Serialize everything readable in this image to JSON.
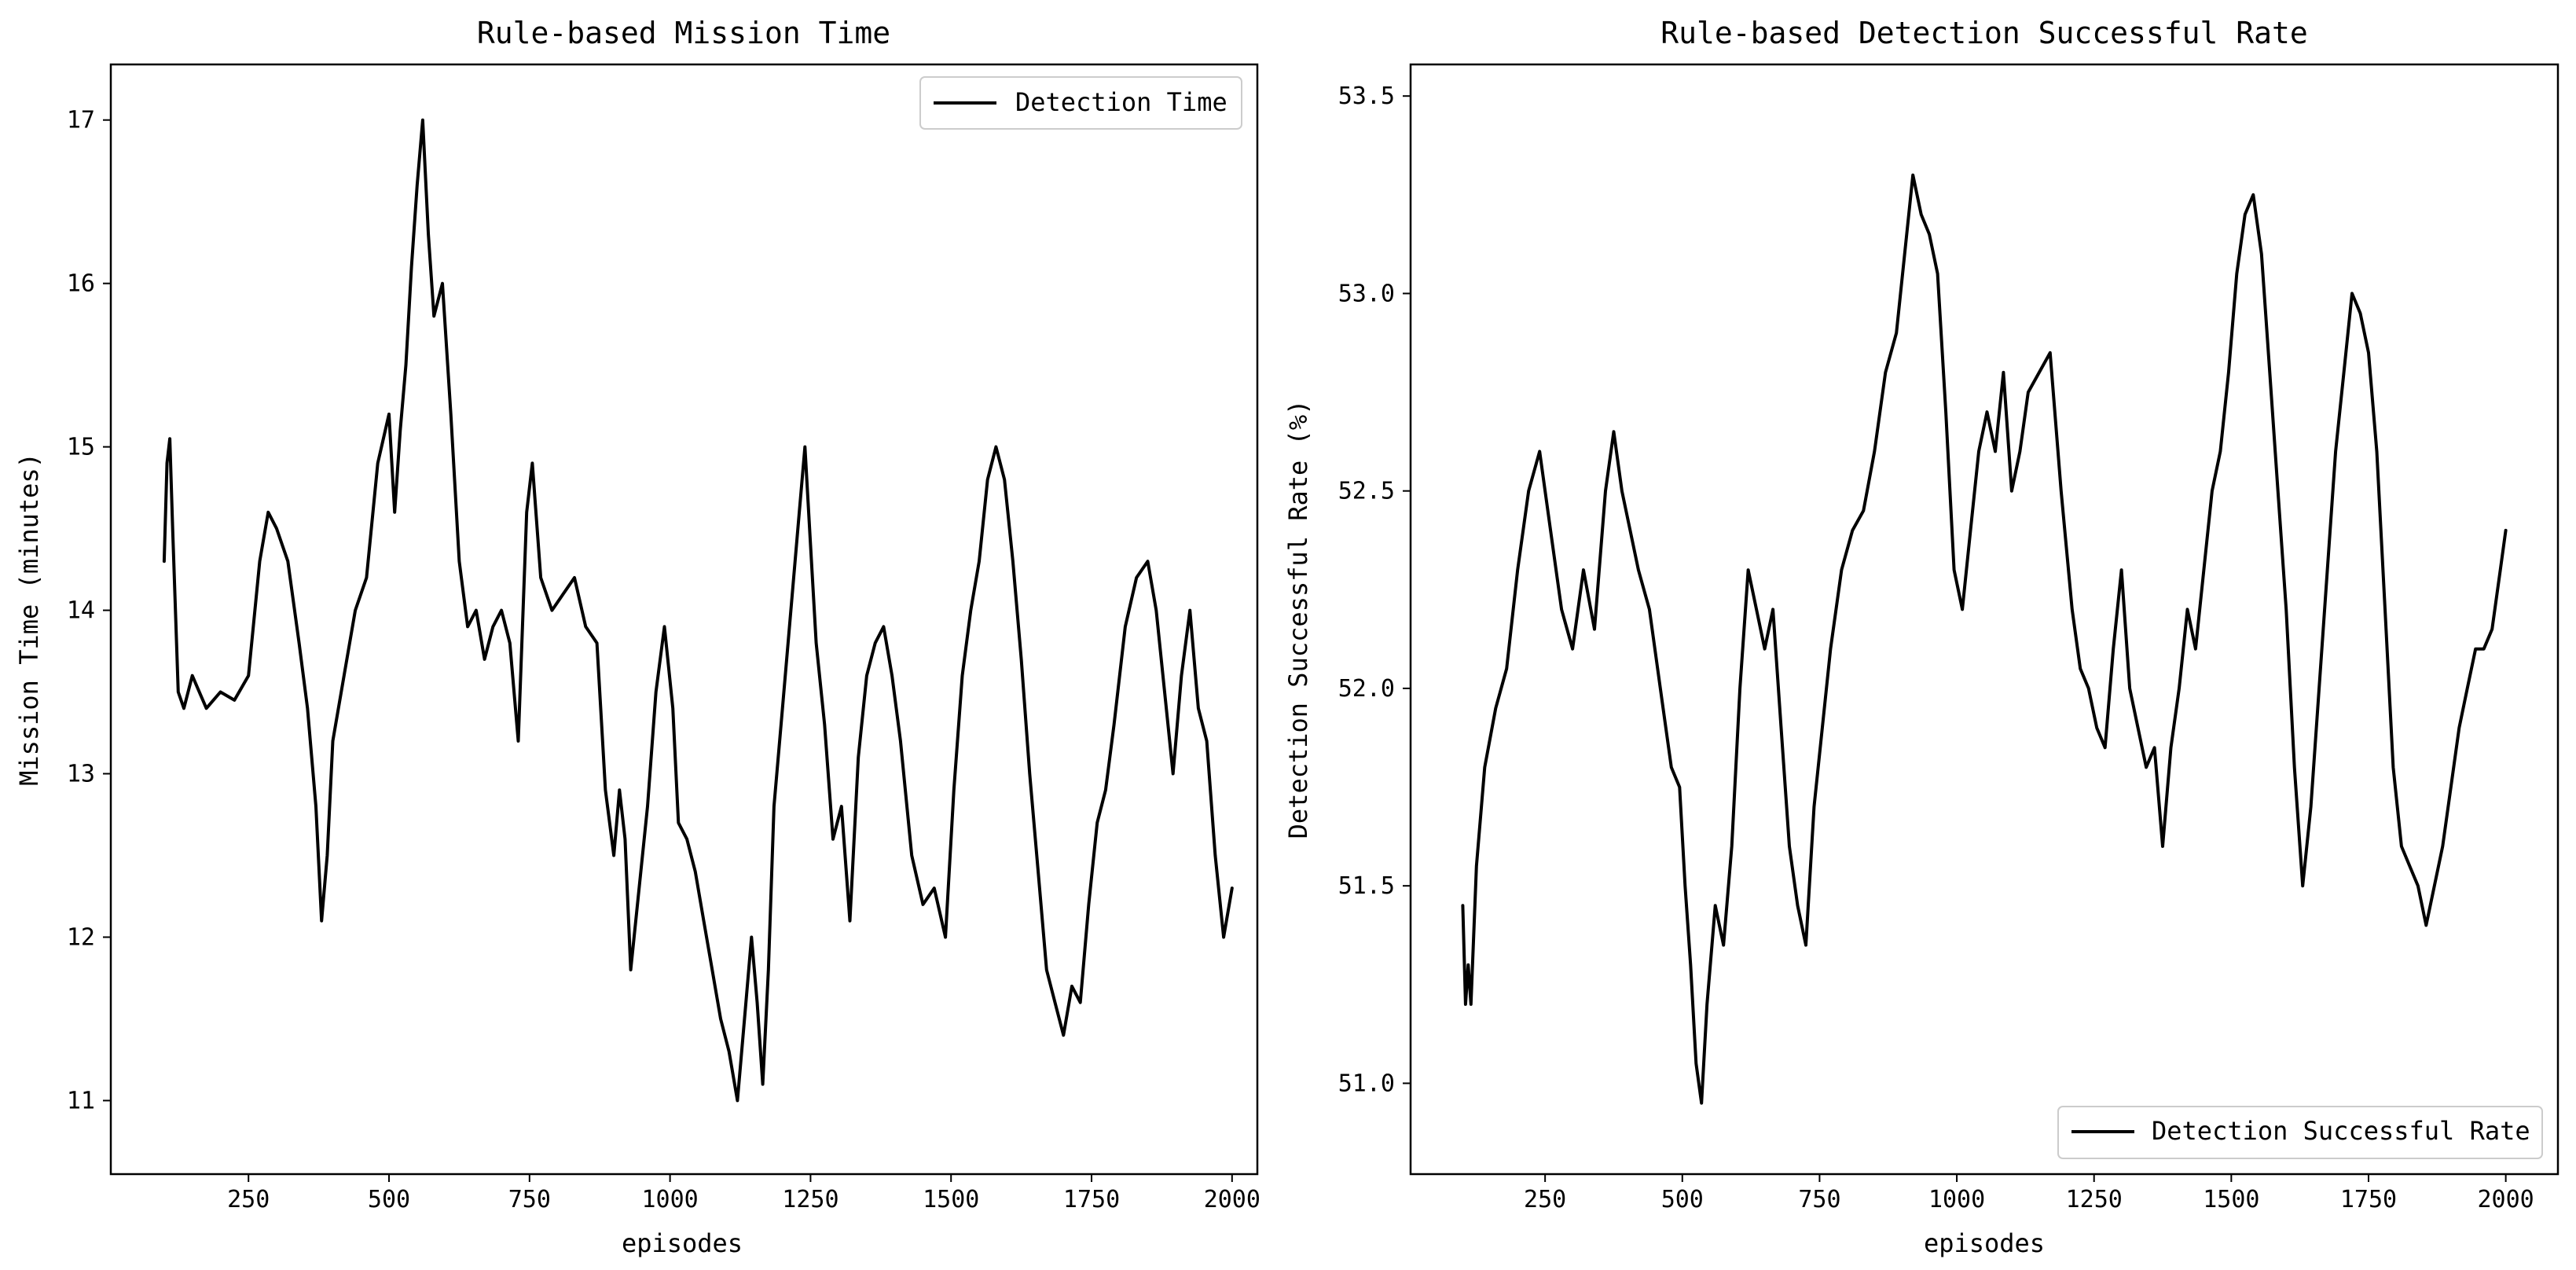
{
  "chart_data": [
    {
      "type": "line",
      "title": "Rule-based Mission Time",
      "xlabel": "episodes",
      "ylabel": "Mission Time (minutes)",
      "xlim": [
        5,
        2045
      ],
      "ylim": [
        10.55,
        17.34
      ],
      "xticks": [
        250,
        500,
        750,
        1000,
        1250,
        1500,
        1750,
        2000
      ],
      "xtick_labels": [
        "250",
        "500",
        "750",
        "1000",
        "1250",
        "1500",
        "1750",
        "2000"
      ],
      "yticks": [
        11,
        12,
        13,
        14,
        15,
        16,
        17
      ],
      "ytick_labels": [
        "11",
        "12",
        "13",
        "14",
        "15",
        "16",
        "17"
      ],
      "legend_position": "top-right",
      "grid": false,
      "series": [
        {
          "name": "Detection Time",
          "color": "#000000",
          "x": [
            100,
            105,
            110,
            115,
            125,
            135,
            150,
            175,
            200,
            225,
            250,
            270,
            285,
            300,
            320,
            340,
            355,
            370,
            380,
            390,
            400,
            420,
            440,
            460,
            480,
            500,
            510,
            520,
            530,
            540,
            550,
            560,
            570,
            580,
            595,
            610,
            625,
            640,
            655,
            670,
            685,
            700,
            715,
            730,
            745,
            755,
            770,
            790,
            810,
            830,
            850,
            870,
            885,
            900,
            910,
            920,
            930,
            945,
            960,
            975,
            990,
            1005,
            1015,
            1030,
            1045,
            1060,
            1075,
            1090,
            1105,
            1120,
            1135,
            1145,
            1155,
            1165,
            1175,
            1185,
            1200,
            1215,
            1230,
            1240,
            1250,
            1260,
            1275,
            1290,
            1305,
            1320,
            1335,
            1350,
            1365,
            1380,
            1395,
            1410,
            1430,
            1450,
            1470,
            1490,
            1505,
            1520,
            1535,
            1550,
            1565,
            1580,
            1595,
            1610,
            1625,
            1640,
            1655,
            1670,
            1685,
            1700,
            1715,
            1730,
            1745,
            1760,
            1775,
            1790,
            1810,
            1830,
            1850,
            1865,
            1880,
            1895,
            1910,
            1925,
            1940,
            1955,
            1970,
            1985,
            2000
          ],
          "values": [
            14.3,
            14.9,
            15.05,
            14.5,
            13.5,
            13.4,
            13.6,
            13.4,
            13.5,
            13.45,
            13.6,
            14.3,
            14.6,
            14.5,
            14.3,
            13.8,
            13.4,
            12.8,
            12.1,
            12.5,
            13.2,
            13.6,
            14.0,
            14.2,
            14.9,
            15.2,
            14.6,
            15.1,
            15.5,
            16.1,
            16.6,
            17.0,
            16.3,
            15.8,
            16.0,
            15.2,
            14.3,
            13.9,
            14.0,
            13.7,
            13.9,
            14.0,
            13.8,
            13.2,
            14.6,
            14.9,
            14.2,
            14.0,
            14.1,
            14.2,
            13.9,
            13.8,
            12.9,
            12.5,
            12.9,
            12.6,
            11.8,
            12.3,
            12.8,
            13.5,
            13.9,
            13.4,
            12.7,
            12.6,
            12.4,
            12.1,
            11.8,
            11.5,
            11.3,
            11.0,
            11.6,
            12.0,
            11.6,
            11.1,
            11.8,
            12.8,
            13.4,
            14.0,
            14.6,
            15.0,
            14.4,
            13.8,
            13.3,
            12.6,
            12.8,
            12.1,
            13.1,
            13.6,
            13.8,
            13.9,
            13.6,
            13.2,
            12.5,
            12.2,
            12.3,
            12.0,
            12.9,
            13.6,
            14.0,
            14.3,
            14.8,
            15.0,
            14.8,
            14.3,
            13.7,
            13.0,
            12.4,
            11.8,
            11.6,
            11.4,
            11.7,
            11.6,
            12.2,
            12.7,
            12.9,
            13.3,
            13.9,
            14.2,
            14.3,
            14.0,
            13.5,
            13.0,
            13.6,
            14.0,
            13.4,
            13.2,
            12.5,
            12.0,
            12.3
          ]
        }
      ]
    },
    {
      "type": "line",
      "title": "Rule-based Detection Successful Rate",
      "xlabel": "episodes",
      "ylabel": "Detection Successful Rate (%)",
      "xlim": [
        5,
        2095
      ],
      "ylim": [
        50.77,
        53.58
      ],
      "xticks": [
        250,
        500,
        750,
        1000,
        1250,
        1500,
        1750,
        2000
      ],
      "xtick_labels": [
        "250",
        "500",
        "750",
        "1000",
        "1250",
        "1500",
        "1750",
        "2000"
      ],
      "yticks": [
        51.0,
        51.5,
        52.0,
        52.5,
        53.0,
        53.5
      ],
      "ytick_labels": [
        "51.0",
        "51.5",
        "52.0",
        "52.5",
        "53.0",
        "53.5"
      ],
      "legend_position": "bottom-right",
      "grid": false,
      "series": [
        {
          "name": "Detection Successful Rate",
          "color": "#000000",
          "x": [
            100,
            105,
            110,
            115,
            125,
            140,
            160,
            180,
            200,
            220,
            240,
            260,
            280,
            300,
            320,
            340,
            360,
            375,
            390,
            405,
            420,
            440,
            460,
            480,
            495,
            505,
            515,
            525,
            535,
            545,
            560,
            575,
            590,
            605,
            620,
            635,
            650,
            665,
            680,
            695,
            710,
            725,
            740,
            755,
            770,
            790,
            810,
            830,
            850,
            870,
            890,
            905,
            920,
            935,
            950,
            965,
            980,
            995,
            1010,
            1025,
            1040,
            1055,
            1070,
            1085,
            1100,
            1115,
            1130,
            1150,
            1170,
            1190,
            1210,
            1225,
            1240,
            1255,
            1270,
            1285,
            1300,
            1315,
            1330,
            1345,
            1360,
            1375,
            1390,
            1405,
            1420,
            1435,
            1450,
            1465,
            1480,
            1495,
            1510,
            1525,
            1540,
            1555,
            1570,
            1585,
            1600,
            1615,
            1630,
            1645,
            1660,
            1675,
            1690,
            1705,
            1720,
            1735,
            1750,
            1765,
            1780,
            1795,
            1810,
            1825,
            1840,
            1855,
            1870,
            1885,
            1900,
            1915,
            1930,
            1945,
            1960,
            1975,
            1990,
            2000
          ],
          "values": [
            51.45,
            51.2,
            51.3,
            51.2,
            51.55,
            51.8,
            51.95,
            52.05,
            52.3,
            52.5,
            52.6,
            52.4,
            52.2,
            52.1,
            52.3,
            52.15,
            52.5,
            52.65,
            52.5,
            52.4,
            52.3,
            52.2,
            52.0,
            51.8,
            51.75,
            51.5,
            51.3,
            51.05,
            50.95,
            51.2,
            51.45,
            51.35,
            51.6,
            52.0,
            52.3,
            52.2,
            52.1,
            52.2,
            51.9,
            51.6,
            51.45,
            51.35,
            51.7,
            51.9,
            52.1,
            52.3,
            52.4,
            52.45,
            52.6,
            52.8,
            52.9,
            53.1,
            53.3,
            53.2,
            53.15,
            53.05,
            52.7,
            52.3,
            52.2,
            52.4,
            52.6,
            52.7,
            52.6,
            52.8,
            52.5,
            52.6,
            52.75,
            52.8,
            52.85,
            52.5,
            52.2,
            52.05,
            52.0,
            51.9,
            51.85,
            52.1,
            52.3,
            52.0,
            51.9,
            51.8,
            51.85,
            51.6,
            51.85,
            52.0,
            52.2,
            52.1,
            52.3,
            52.5,
            52.6,
            52.8,
            53.05,
            53.2,
            53.25,
            53.1,
            52.8,
            52.5,
            52.2,
            51.8,
            51.5,
            51.7,
            52.0,
            52.3,
            52.6,
            52.8,
            53.0,
            52.95,
            52.85,
            52.6,
            52.2,
            51.8,
            51.6,
            51.55,
            51.5,
            51.4,
            51.5,
            51.6,
            51.75,
            51.9,
            52.0,
            52.1,
            52.1,
            52.15,
            52.3,
            52.4
          ]
        }
      ]
    }
  ]
}
